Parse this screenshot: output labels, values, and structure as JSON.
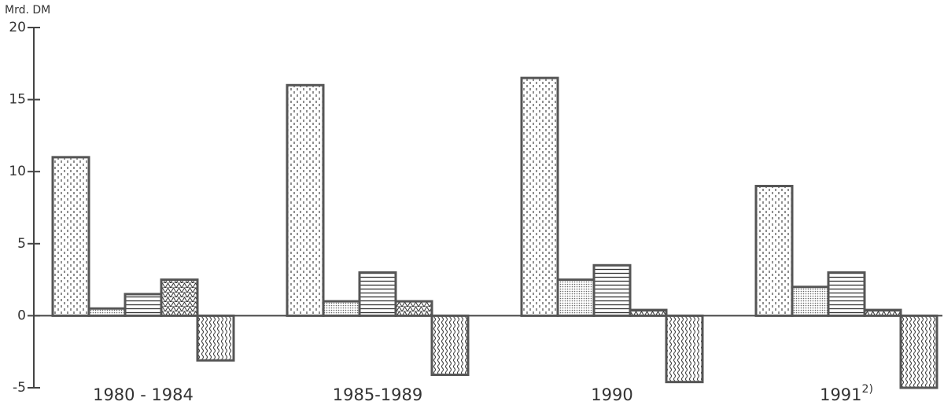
{
  "chart_data": {
    "type": "bar",
    "y_label": "Mrd. DM",
    "categories": [
      "1980 - 1984",
      "1985-1989",
      "1990",
      "1991"
    ],
    "category_notes": [
      null,
      null,
      null,
      "2)"
    ],
    "series": [
      {
        "pattern": "dashes",
        "color": "#555",
        "values": [
          11,
          16,
          16.5,
          9
        ]
      },
      {
        "pattern": "dots",
        "color": "#555",
        "values": [
          0.5,
          1,
          2.5,
          2
        ]
      },
      {
        "pattern": "hlines",
        "color": "#555",
        "values": [
          1.5,
          3,
          3.5,
          3
        ]
      },
      {
        "pattern": "triangles",
        "color": "#555",
        "values": [
          2.5,
          1,
          0.4,
          0.4
        ]
      },
      {
        "pattern": "waves",
        "color": "#555",
        "values": [
          -3.1,
          -4.1,
          -4.6,
          -5
        ]
      }
    ],
    "ylim": [
      -5,
      20
    ],
    "yticks": [
      -5,
      0,
      5,
      10,
      15,
      20
    ]
  }
}
